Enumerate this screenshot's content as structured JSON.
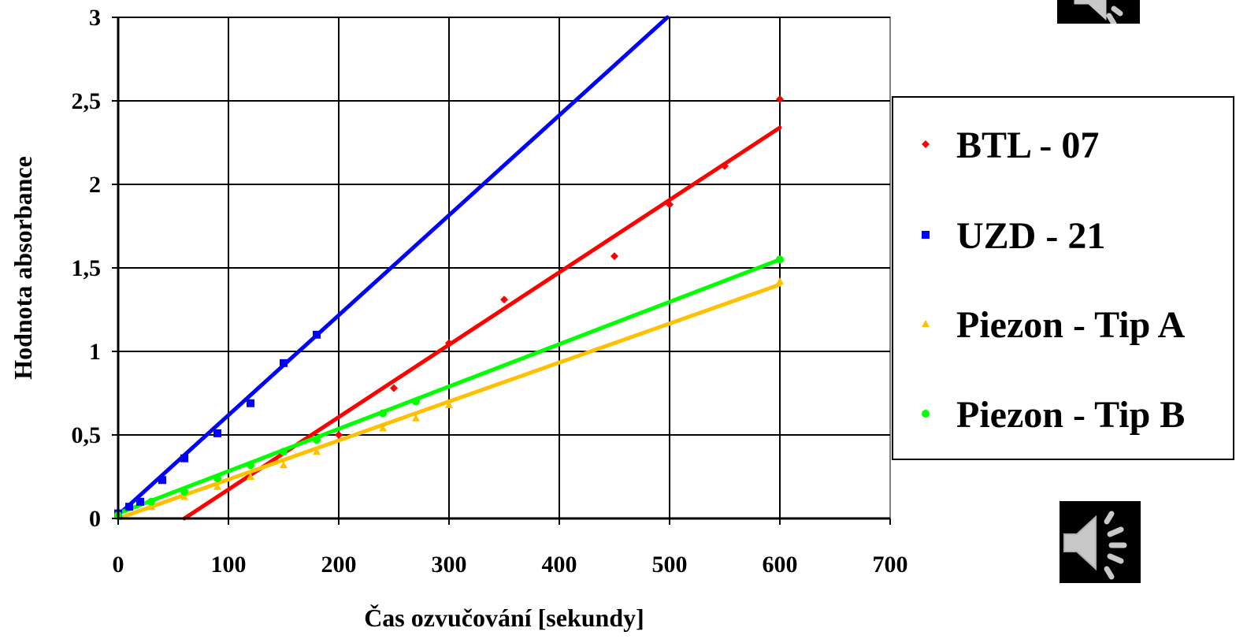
{
  "chart_data": {
    "type": "scatter",
    "xlabel": "Čas ozvučování [sekundy]",
    "ylabel": "Hodnota absorbance",
    "xlim": [
      0,
      700
    ],
    "ylim": [
      0,
      3
    ],
    "x_ticks": [
      0,
      100,
      200,
      300,
      400,
      500,
      600,
      700
    ],
    "y_ticks": [
      0,
      0.5,
      1,
      1.5,
      2,
      2.5,
      3
    ],
    "x_tick_labels": [
      "0",
      "100",
      "200",
      "300",
      "400",
      "500",
      "600",
      "700"
    ],
    "y_tick_labels": [
      "0",
      "0,5",
      "1",
      "1,5",
      "2",
      "2,5",
      "3"
    ],
    "grid": true,
    "legend_position": "right",
    "series": [
      {
        "name": "BTL - 07",
        "color": "#ff0000",
        "marker": "diamond",
        "points": [
          [
            600,
            2.51
          ],
          [
            550,
            2.11
          ],
          [
            500,
            1.88
          ],
          [
            450,
            1.57
          ],
          [
            350,
            1.31
          ],
          [
            300,
            1.05
          ],
          [
            250,
            0.78
          ],
          [
            200,
            0.5
          ]
        ],
        "trend": [
          [
            60,
            0
          ],
          [
            600,
            2.34
          ]
        ]
      },
      {
        "name": "UZD - 21",
        "color": "#0000ff",
        "marker": "square",
        "points": [
          [
            0,
            0.03
          ],
          [
            10,
            0.07
          ],
          [
            20,
            0.1
          ],
          [
            40,
            0.23
          ],
          [
            60,
            0.36
          ],
          [
            90,
            0.51
          ],
          [
            120,
            0.69
          ],
          [
            150,
            0.93
          ],
          [
            180,
            1.1
          ]
        ],
        "trend": [
          [
            0,
            0.02
          ],
          [
            498,
            3.0
          ]
        ]
      },
      {
        "name": "Piezon - Tip A",
        "color": "#ffc000",
        "marker": "triangle",
        "points": [
          [
            0,
            0.01
          ],
          [
            30,
            0.07
          ],
          [
            60,
            0.13
          ],
          [
            90,
            0.19
          ],
          [
            120,
            0.25
          ],
          [
            150,
            0.32
          ],
          [
            180,
            0.4
          ],
          [
            240,
            0.54
          ],
          [
            270,
            0.6
          ],
          [
            300,
            0.68
          ],
          [
            600,
            1.42
          ]
        ],
        "trend": [
          [
            0,
            0.0
          ],
          [
            600,
            1.4
          ]
        ]
      },
      {
        "name": "Piezon - Tip B",
        "color": "#00ff00",
        "marker": "circle",
        "points": [
          [
            0,
            0.02
          ],
          [
            30,
            0.1
          ],
          [
            60,
            0.16
          ],
          [
            90,
            0.24
          ],
          [
            120,
            0.32
          ],
          [
            150,
            0.4
          ],
          [
            180,
            0.47
          ],
          [
            240,
            0.63
          ],
          [
            270,
            0.7
          ],
          [
            600,
            1.55
          ]
        ],
        "trend": [
          [
            0,
            0.03
          ],
          [
            600,
            1.55
          ]
        ]
      }
    ]
  },
  "icons": {
    "top_speaker": "speaker-icon",
    "bottom_speaker": "speaker-icon"
  }
}
